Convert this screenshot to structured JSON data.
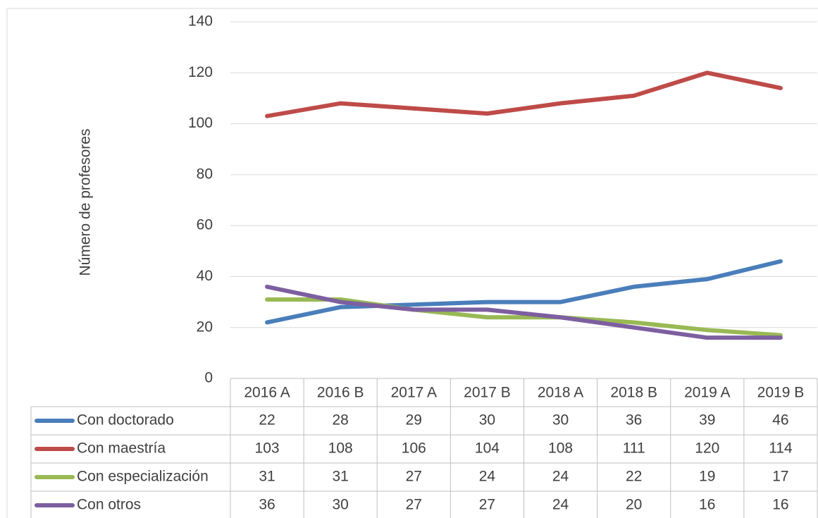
{
  "chart_data": {
    "type": "line",
    "y_label": "Número de profesores",
    "categories": [
      "2016 A",
      "2016 B",
      "2017 A",
      "2017 B",
      "2018 A",
      "2018 B",
      "2019 A",
      "2019 B"
    ],
    "series": [
      {
        "name": "Con doctorado",
        "color": "#4a7ebb",
        "values": [
          22,
          28,
          29,
          30,
          30,
          36,
          39,
          46
        ]
      },
      {
        "name": "Con maestría",
        "color": "#be4b48",
        "values": [
          103,
          108,
          106,
          104,
          108,
          111,
          120,
          114
        ]
      },
      {
        "name": "Con especialización",
        "color": "#98b954",
        "values": [
          31,
          31,
          27,
          24,
          24,
          22,
          19,
          17
        ]
      },
      {
        "name": "Con otros",
        "color": "#7d5fa0",
        "values": [
          36,
          30,
          27,
          27,
          24,
          20,
          16,
          16
        ]
      }
    ],
    "ylim": [
      0,
      140
    ],
    "yticks": [
      0,
      20,
      40,
      60,
      80,
      100,
      120,
      140
    ],
    "grid": true,
    "data_table": true
  }
}
